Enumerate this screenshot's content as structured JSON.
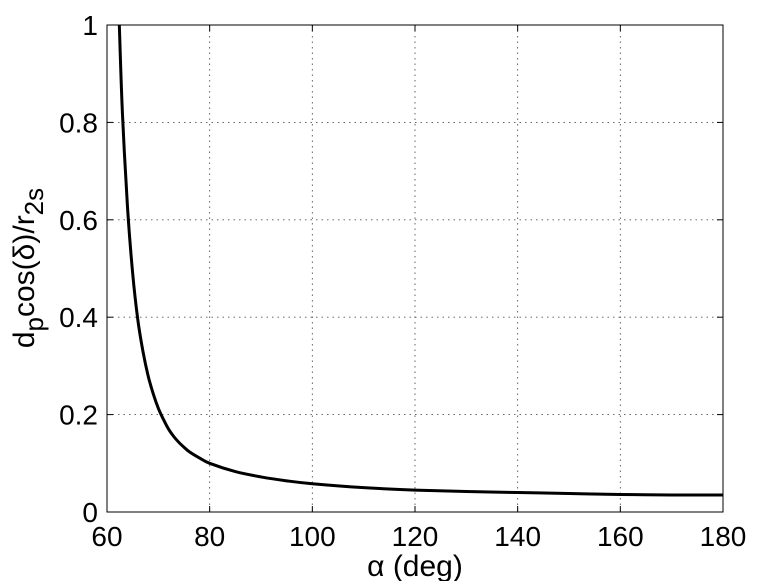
{
  "chart_data": {
    "type": "line",
    "title": "",
    "xlabel": "α (deg)",
    "ylabel_main": "d",
    "ylabel_sub1": "p",
    "ylabel_mid": "cos(δ)/r",
    "ylabel_sub2": "2s",
    "xlim": [
      60,
      180
    ],
    "ylim": [
      0,
      1
    ],
    "x_ticks": [
      60,
      80,
      100,
      120,
      140,
      160,
      180
    ],
    "y_ticks": [
      0,
      0.2,
      0.4,
      0.6,
      0.8,
      1
    ],
    "x_tick_labels": [
      "60",
      "80",
      "100",
      "120",
      "140",
      "160",
      "180"
    ],
    "y_tick_labels": [
      "0",
      "0.2",
      "0.4",
      "0.6",
      "0.8",
      "1"
    ],
    "grid": true,
    "line_color": "#000000",
    "series": [
      {
        "x": [
          62.4,
          63,
          64,
          65,
          66,
          67,
          68,
          69,
          70,
          71,
          72,
          73,
          74,
          75,
          76,
          78,
          80,
          85,
          90,
          95,
          100,
          110,
          120,
          130,
          140,
          150,
          160,
          170,
          180
        ],
        "y": [
          1.0,
          0.82,
          0.625,
          0.49,
          0.395,
          0.33,
          0.28,
          0.243,
          0.213,
          0.19,
          0.17,
          0.155,
          0.143,
          0.133,
          0.124,
          0.111,
          0.1,
          0.083,
          0.072,
          0.064,
          0.058,
          0.05,
          0.045,
          0.042,
          0.04,
          0.038,
          0.036,
          0.035,
          0.035
        ]
      }
    ]
  }
}
